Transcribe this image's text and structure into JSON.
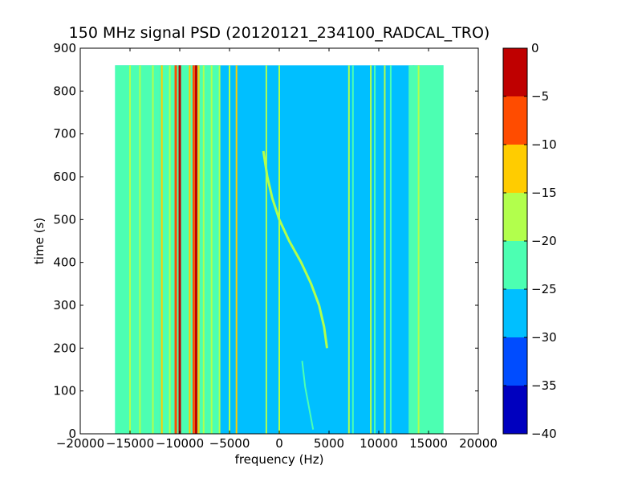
{
  "chart_data": {
    "type": "heatmap",
    "title": "150 MHz signal PSD (20120121_234100_RADCAL_TRO)",
    "xlabel": "frequency (Hz)",
    "ylabel": "time (s)",
    "xlim": [
      -20000,
      20000
    ],
    "ylim": [
      0,
      900
    ],
    "x_ticks": [
      -20000,
      -15000,
      -10000,
      -5000,
      0,
      5000,
      10000,
      15000,
      20000
    ],
    "y_ticks": [
      0,
      100,
      200,
      300,
      400,
      500,
      600,
      700,
      800,
      900
    ],
    "data_extent": {
      "x": [
        -16500,
        16500
      ],
      "y": [
        0,
        860
      ]
    },
    "grid": false,
    "colorbar": {
      "ticks": [
        0,
        -5,
        -10,
        -15,
        -20,
        -25,
        -30,
        -35,
        -40
      ],
      "range": [
        -40,
        0
      ],
      "levels": [
        {
          "range": [
            -40,
            -35
          ],
          "color": "#0000bf"
        },
        {
          "range": [
            -35,
            -30
          ],
          "color": "#004cff"
        },
        {
          "range": [
            -30,
            -25
          ],
          "color": "#00bfff"
        },
        {
          "range": [
            -25,
            -20
          ],
          "color": "#4cffb2"
        },
        {
          "range": [
            -20,
            -15
          ],
          "color": "#b2ff4c"
        },
        {
          "range": [
            -15,
            -10
          ],
          "color": "#ffcc00"
        },
        {
          "range": [
            -10,
            -5
          ],
          "color": "#ff4c00"
        },
        {
          "range": [
            -5,
            0
          ],
          "color": "#bf0000"
        }
      ]
    },
    "background_level": -27.5,
    "band_regions": [
      {
        "x": [
          -16500,
          -12000
        ],
        "level": -22.5
      },
      {
        "x": [
          13000,
          16500
        ],
        "level": -22.5
      },
      {
        "x": [
          -12000,
          -6000
        ],
        "level": -22.5
      }
    ],
    "vertical_lines": [
      {
        "x": -15000,
        "level": -17.5
      },
      {
        "x": -14000,
        "level": -17.5
      },
      {
        "x": -12700,
        "level": -17.5
      },
      {
        "x": -11800,
        "level": -12.5
      },
      {
        "x": -11000,
        "level": -17.5
      },
      {
        "x": -10400,
        "level": -7.5
      },
      {
        "x": -10000,
        "level": -2.5
      },
      {
        "x": -9000,
        "level": -12.5
      },
      {
        "x": -8600,
        "level": -7.5
      },
      {
        "x": -8350,
        "level": -2.5
      },
      {
        "x": -8100,
        "level": -12.5
      },
      {
        "x": -7600,
        "level": -17.5
      },
      {
        "x": -6800,
        "level": -17.5
      },
      {
        "x": -6000,
        "level": -17.5
      },
      {
        "x": -5000,
        "level": -17.5
      },
      {
        "x": -4300,
        "level": -12.5
      },
      {
        "x": -1300,
        "level": -17.5
      },
      {
        "x": 0,
        "level": -17.5
      },
      {
        "x": 7000,
        "level": -17.5
      },
      {
        "x": 7400,
        "level": -22.5
      },
      {
        "x": 9200,
        "level": -17.5
      },
      {
        "x": 9600,
        "level": -22.5
      },
      {
        "x": 10600,
        "level": -17.5
      },
      {
        "x": 11200,
        "level": -22.5
      },
      {
        "x": 13500,
        "level": -22.5
      },
      {
        "x": 14000,
        "level": -17.5
      }
    ],
    "chirp_trace": {
      "level": -17.5,
      "points": [
        [
          -1600,
          660
        ],
        [
          -1200,
          600
        ],
        [
          -700,
          550
        ],
        [
          0,
          500
        ],
        [
          1000,
          450
        ],
        [
          2200,
          400
        ],
        [
          3200,
          350
        ],
        [
          4000,
          300
        ],
        [
          4500,
          250
        ],
        [
          4800,
          200
        ]
      ]
    },
    "faint_trace": {
      "level": -22.5,
      "points": [
        [
          2300,
          170
        ],
        [
          2600,
          110
        ],
        [
          3000,
          60
        ],
        [
          3400,
          10
        ]
      ]
    }
  }
}
